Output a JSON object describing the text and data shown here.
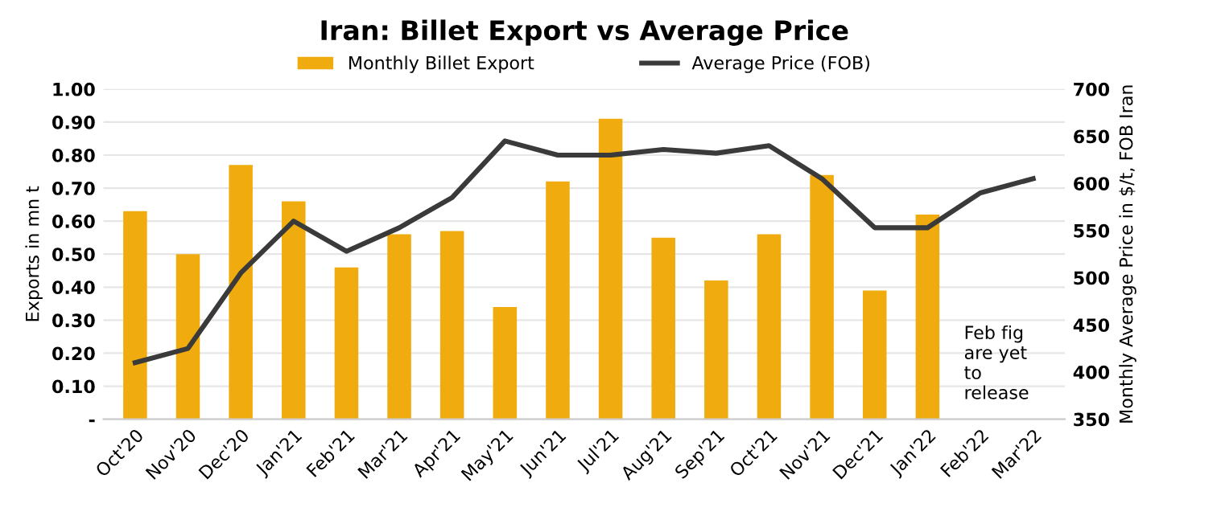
{
  "chart_data": {
    "type": "bar",
    "title": "Iran: Billet Export vs Average Price",
    "categories": [
      "Oct'20",
      "Nov'20",
      "Dec'20",
      "Jan'21",
      "Feb'21",
      "Mar'21",
      "Apr'21",
      "May'21",
      "Jun'21",
      "Jul'21",
      "Aug'21",
      "Sep'21",
      "Oct'21",
      "Nov'21",
      "Dec'21",
      "Jan'22",
      "Feb'22",
      "Mar'22"
    ],
    "series": [
      {
        "name": "Monthly Billet Export",
        "color": "#f0ac0e",
        "values": [
          0.63,
          0.5,
          0.77,
          0.66,
          0.46,
          0.56,
          0.57,
          0.34,
          0.72,
          0.91,
          0.55,
          0.42,
          0.56,
          0.74,
          0.39,
          0.62,
          null,
          null
        ]
      },
      {
        "name": "Average Price (FOB)",
        "type": "line",
        "axis": "y2",
        "color": "#3a3a3a",
        "values": [
          410,
          425,
          505,
          560,
          528,
          553,
          585,
          645,
          630,
          630,
          636,
          632,
          640,
          605,
          553,
          553,
          590,
          605
        ]
      }
    ],
    "ylabel": "Exports in mn t",
    "y2label": "Monthly Average Price in $/t, FOB Iran",
    "ylim": [
      0,
      1.0
    ],
    "yticks": [
      {
        "value": 0,
        "label": "-"
      },
      {
        "value": 0.1,
        "label": "0.10"
      },
      {
        "value": 0.2,
        "label": "0.20"
      },
      {
        "value": 0.3,
        "label": "0.30"
      },
      {
        "value": 0.4,
        "label": "0.40"
      },
      {
        "value": 0.5,
        "label": "0.50"
      },
      {
        "value": 0.6,
        "label": "0.60"
      },
      {
        "value": 0.7,
        "label": "0.70"
      },
      {
        "value": 0.8,
        "label": "0.80"
      },
      {
        "value": 0.9,
        "label": "0.90"
      },
      {
        "value": 1.0,
        "label": "1.00"
      }
    ],
    "y2lim": [
      350,
      700
    ],
    "y2ticks": [
      350,
      400,
      450,
      500,
      550,
      600,
      650,
      700
    ],
    "annotations": [
      "Feb fig\nare yet\nto\nrelease"
    ],
    "grid": "y",
    "legend": "top",
    "marker": "none",
    "line_style": "solid"
  }
}
